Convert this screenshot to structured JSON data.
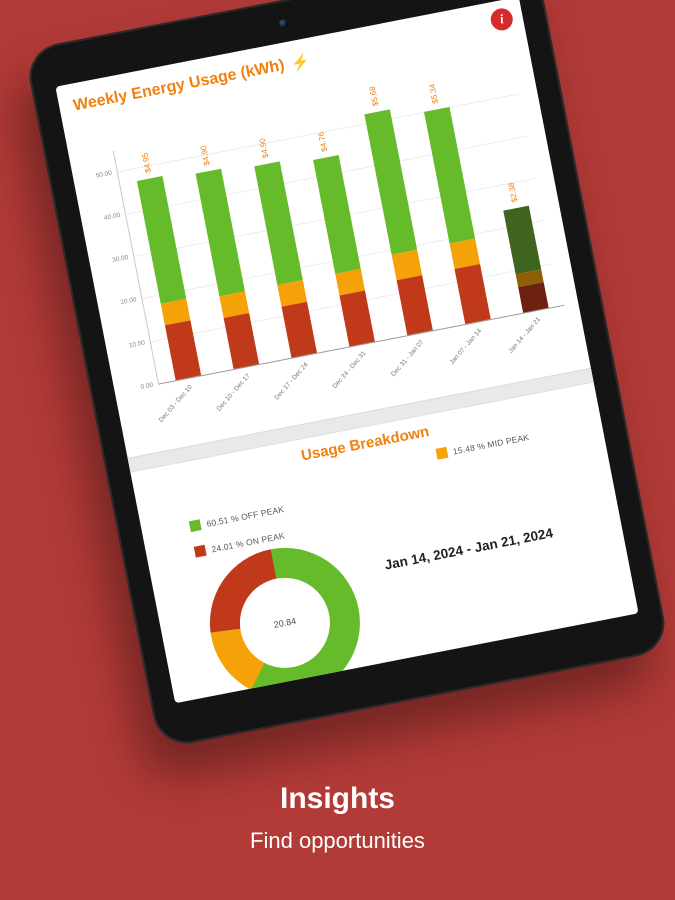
{
  "colors": {
    "page_background": "#b23a37",
    "accent_orange": "#f0810f",
    "info_red": "#d62b2b",
    "off_peak_green": "#66bb2a",
    "mid_peak_orange": "#f5a208",
    "on_peak_red": "#c0391b"
  },
  "app": {
    "title": "Weekly Energy Usage (kWh)",
    "lightning_icon": "⚡",
    "info_icon": "i",
    "breakdown_title": "Usage Breakdown",
    "legend": [
      {
        "label": "60.51 % OFF PEAK",
        "color": "#66bb2a"
      },
      {
        "label": "24.01 % ON PEAK",
        "color": "#c0391b"
      },
      {
        "label": "15.48 % MID PEAK",
        "color": "#f5a208"
      }
    ],
    "date_range": "Jan 14, 2024 - Jan 21, 2024",
    "donut_center_label": "20.84"
  },
  "caption": {
    "title": "Insights",
    "subtitle": "Find opportunities"
  },
  "chart_data": [
    {
      "type": "bar",
      "stacked": true,
      "title": "Weekly Energy Usage (kWh)",
      "categories": [
        "Dec 03 - Dec 10",
        "Dec 10 - Dec 17",
        "Dec 17 - Dec 24",
        "Dec 24 - Dec 31",
        "Dec 31 - Jan 07",
        "Jan 07 - Jan 14",
        "Jan 14 - Jan 21"
      ],
      "bar_total_labels": [
        "$4.95",
        "$4.90",
        "$4.90",
        "$4.76",
        "$5.68",
        "$5.34",
        "$2.38"
      ],
      "series": [
        {
          "name": "ON PEAK",
          "color": "#c0391b",
          "selected_color": "#6e2110",
          "values": [
            13,
            12,
            12,
            12,
            13,
            13,
            6
          ]
        },
        {
          "name": "MID PEAK",
          "color": "#f5a208",
          "selected_color": "#8f5f06",
          "values": [
            5,
            5,
            5,
            5,
            6,
            6,
            3
          ]
        },
        {
          "name": "OFF PEAK",
          "color": "#66bb2a",
          "selected_color": "#3f641f",
          "values": [
            29,
            29,
            28,
            27,
            33,
            31,
            15
          ]
        }
      ],
      "selected_index": 6,
      "ylim": [
        0,
        55
      ],
      "yticks": [
        "0.00",
        "10.00",
        "20.00",
        "30.00",
        "40.00",
        "50.00"
      ],
      "grid": true,
      "legend_position": "below"
    },
    {
      "type": "pie",
      "labels": [
        "OFF PEAK",
        "MID PEAK",
        "ON PEAK"
      ],
      "values": [
        60.51,
        15.48,
        24.01
      ],
      "colors": [
        "#66bb2a",
        "#f5a208",
        "#c0391b"
      ],
      "center_label": "20.84",
      "subtitle": "Jan 14, 2024 - Jan 21, 2024"
    }
  ]
}
